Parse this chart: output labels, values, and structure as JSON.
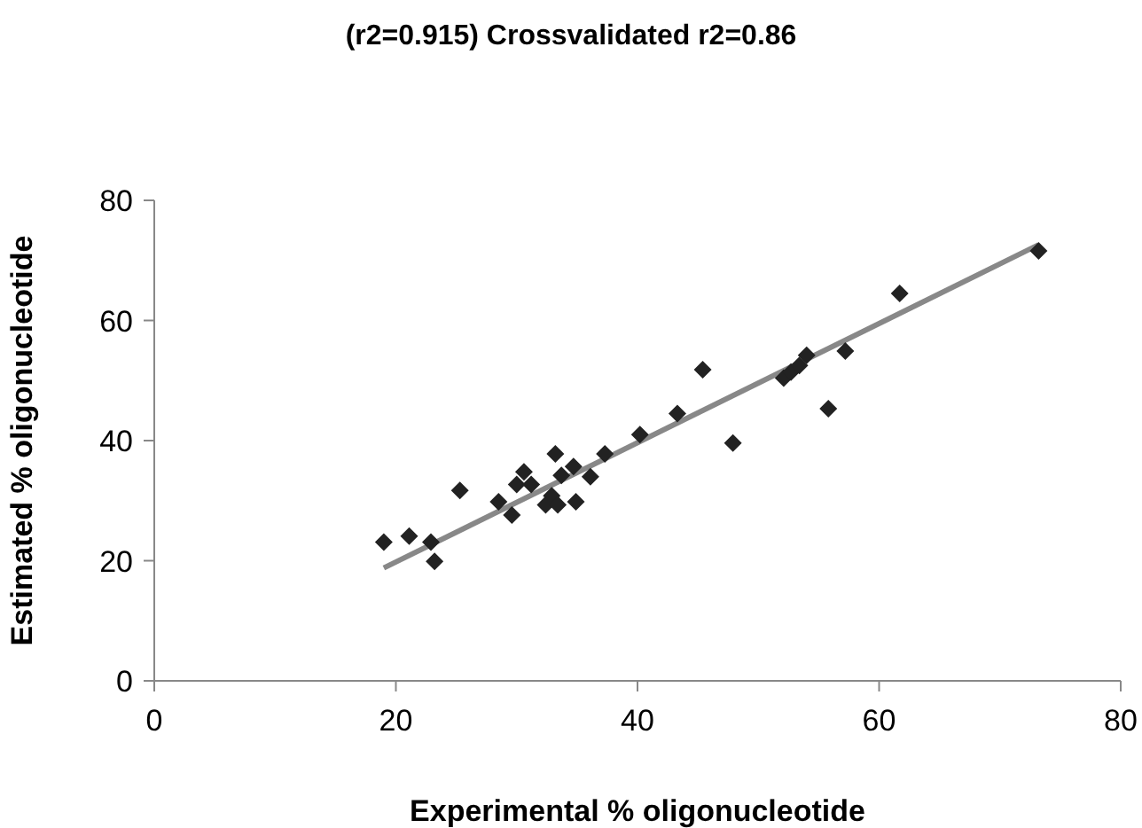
{
  "chart_data": {
    "type": "scatter",
    "title": "(r2=0.915) Crossvalidated r2=0.86",
    "xlabel": "Experimental % oligonucleotide",
    "ylabel": "Estimated % oligonucleotide",
    "xlim": [
      0,
      80
    ],
    "xticks": [
      0,
      20,
      40,
      60,
      80
    ],
    "ylim": [
      0,
      80
    ],
    "yticks": [
      0,
      20,
      40,
      60,
      80
    ],
    "series": [
      {
        "color": "#222222",
        "marker": "diamond",
        "x": [
          19.0,
          21.1,
          22.9,
          23.2,
          25.3,
          28.5,
          29.6,
          30.0,
          30.6,
          31.2,
          32.4,
          32.9,
          33.2,
          33.4,
          33.7,
          34.7,
          34.9,
          36.1,
          37.3,
          40.2,
          43.3,
          45.4,
          47.9,
          52.1,
          52.7,
          53.4,
          54.0,
          55.8,
          57.2,
          61.7,
          73.2
        ],
        "values": [
          23.1,
          24.1,
          23.1,
          19.9,
          31.7,
          29.8,
          27.6,
          32.7,
          34.8,
          32.7,
          29.3,
          30.8,
          37.8,
          29.3,
          34.2,
          35.7,
          29.8,
          34.0,
          37.8,
          41.0,
          44.5,
          51.8,
          39.6,
          50.4,
          51.4,
          52.5,
          54.2,
          45.3,
          54.9,
          64.5,
          71.6
        ]
      },
      {
        "type": "line",
        "color": "#888888",
        "marker": "none",
        "x": [
          19.0,
          73.2
        ],
        "values": [
          18.8,
          72.6
        ]
      }
    ]
  }
}
